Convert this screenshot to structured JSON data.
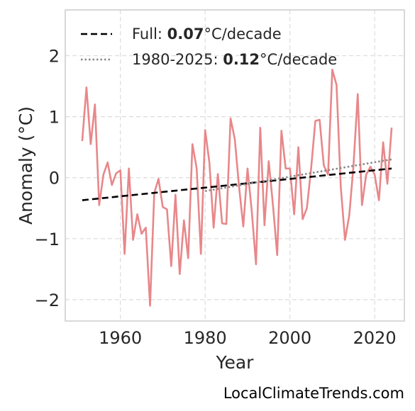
{
  "colors": {
    "anomaly_line": "#e8878a",
    "full_trend": "#000000",
    "recent_trend": "#888888",
    "grid": "#dcdcdc",
    "frame": "#cccccc"
  },
  "watermark": "LocalClimateTrends.com",
  "chart_data": {
    "type": "line",
    "xlabel": "Year",
    "ylabel": "Anomaly (°C)",
    "xlim": [
      1947,
      2027
    ],
    "ylim": [
      -2.35,
      2.75
    ],
    "grid": true,
    "legend_position": "top-left",
    "x_ticks": [
      1960,
      1980,
      2000,
      2020
    ],
    "x_tick_labels": [
      "1960",
      "1980",
      "2000",
      "2020"
    ],
    "y_ticks": [
      -2,
      -1,
      0,
      1,
      2
    ],
    "y_tick_labels": [
      "−2",
      "−1",
      "0",
      "1",
      "2"
    ],
    "series": [
      {
        "style": "solid",
        "x": [
          1951,
          1952,
          1953,
          1954,
          1955,
          1956,
          1957,
          1958,
          1959,
          1960,
          1961,
          1962,
          1963,
          1964,
          1965,
          1966,
          1967,
          1968,
          1969,
          1970,
          1971,
          1972,
          1973,
          1974,
          1975,
          1976,
          1977,
          1978,
          1979,
          1980,
          1981,
          1982,
          1983,
          1984,
          1985,
          1986,
          1987,
          1988,
          1989,
          1990,
          1991,
          1992,
          1993,
          1994,
          1995,
          1996,
          1997,
          1998,
          1999,
          2000,
          2001,
          2002,
          2003,
          2004,
          2005,
          2006,
          2007,
          2008,
          2009,
          2010,
          2011,
          2012,
          2013,
          2014,
          2015,
          2016,
          2017,
          2018,
          2019,
          2020,
          2021,
          2022,
          2023,
          2024
        ],
        "values": [
          0.6,
          1.48,
          0.55,
          1.2,
          -0.45,
          0.05,
          0.25,
          -0.12,
          0.07,
          0.12,
          -1.25,
          0.15,
          -1.02,
          -0.6,
          -0.92,
          -0.82,
          -2.1,
          -0.25,
          -0.02,
          -0.48,
          -0.52,
          -1.45,
          -0.28,
          -1.58,
          -0.7,
          -1.32,
          0.55,
          0.15,
          -1.25,
          0.78,
          0.25,
          -0.82,
          0.06,
          -0.75,
          -0.76,
          0.97,
          0.63,
          -0.15,
          -0.8,
          0.15,
          -0.55,
          -1.42,
          0.82,
          -0.78,
          0.27,
          -0.45,
          -1.27,
          0.77,
          0.15,
          0.15,
          -0.6,
          0.5,
          -0.68,
          -0.5,
          0.15,
          0.93,
          0.95,
          0.2,
          0.05,
          1.77,
          1.52,
          -0.15,
          -1.02,
          -0.62,
          0.2,
          1.37,
          -0.45,
          0.05,
          0.18,
          0.05,
          -0.37,
          0.58,
          -0.1,
          0.82
        ]
      },
      {
        "style": "dashed",
        "legend_prefix": "Full: ",
        "legend_value": "0.07",
        "legend_suffix": "°C/decade",
        "x": [
          1951,
          2024
        ],
        "values": [
          -0.37,
          0.15
        ]
      },
      {
        "style": "dotted",
        "legend_prefix": "1980-2025: ",
        "legend_value": "0.12",
        "legend_suffix": "°C/decade",
        "x": [
          1980,
          2024
        ],
        "values": [
          -0.22,
          0.3
        ]
      }
    ]
  }
}
